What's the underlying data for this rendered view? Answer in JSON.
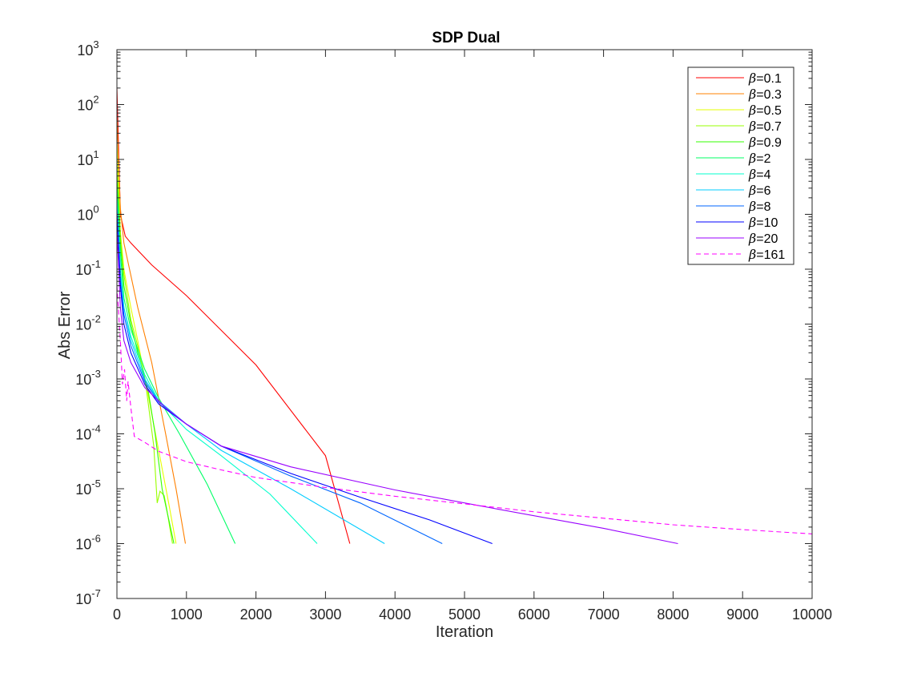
{
  "chart_data": {
    "type": "line",
    "title": "SDP Dual",
    "xlabel": "Iteration",
    "ylabel": "Abs Error",
    "xlim": [
      0,
      10000
    ],
    "ylim": [
      1e-07,
      1000
    ],
    "yscale": "log",
    "grid": false,
    "legend_position": "top-right",
    "x_ticks": [
      "0",
      "1000",
      "2000",
      "3000",
      "4000",
      "5000",
      "6000",
      "7000",
      "8000",
      "9000",
      "10000"
    ],
    "y_ticks": [
      {
        "base": "10",
        "exp": "-7"
      },
      {
        "base": "10",
        "exp": "-6"
      },
      {
        "base": "10",
        "exp": "-5"
      },
      {
        "base": "10",
        "exp": "-4"
      },
      {
        "base": "10",
        "exp": "-3"
      },
      {
        "base": "10",
        "exp": "-2"
      },
      {
        "base": "10",
        "exp": "-1"
      },
      {
        "base": "10",
        "exp": "0"
      },
      {
        "base": "10",
        "exp": "1"
      },
      {
        "base": "10",
        "exp": "2"
      },
      {
        "base": "10",
        "exp": "3"
      }
    ],
    "series": [
      {
        "name": "=0.1",
        "color": "#ff0000",
        "dash": false,
        "points": [
          [
            0,
            200
          ],
          [
            50,
            1
          ],
          [
            120,
            0.4
          ],
          [
            200,
            0.3
          ],
          [
            500,
            0.12
          ],
          [
            1000,
            0.033
          ],
          [
            2000,
            0.0018
          ],
          [
            3000,
            4e-05
          ],
          [
            3350,
            1e-06
          ]
        ]
      },
      {
        "name": "=0.3",
        "color": "#ff8000",
        "dash": false,
        "points": [
          [
            0,
            60
          ],
          [
            50,
            1.3
          ],
          [
            100,
            0.3
          ],
          [
            300,
            0.02
          ],
          [
            500,
            0.002
          ],
          [
            700,
            0.0001
          ],
          [
            850,
            1e-05
          ],
          [
            985,
            1e-06
          ]
        ]
      },
      {
        "name": "=0.5",
        "color": "#e6ff00",
        "dash": false,
        "points": [
          [
            0,
            20
          ],
          [
            50,
            0.5
          ],
          [
            100,
            0.1
          ],
          [
            200,
            0.02
          ],
          [
            300,
            0.005
          ],
          [
            450,
            0.0005
          ],
          [
            600,
            5e-05
          ],
          [
            750,
            5e-06
          ],
          [
            850,
            1e-06
          ]
        ]
      },
      {
        "name": "=0.7",
        "color": "#99ff00",
        "dash": false,
        "points": [
          [
            0,
            10
          ],
          [
            50,
            0.4
          ],
          [
            100,
            0.08
          ],
          [
            200,
            0.012
          ],
          [
            300,
            0.004
          ],
          [
            420,
            0.0007
          ],
          [
            530,
            6e-05
          ],
          [
            580,
            5.5e-06
          ],
          [
            620,
            9e-06
          ],
          [
            680,
            7.5e-06
          ],
          [
            720,
            4e-06
          ],
          [
            800,
            1e-06
          ]
        ]
      },
      {
        "name": "=0.9",
        "color": "#33ff00",
        "dash": false,
        "points": [
          [
            0,
            5
          ],
          [
            50,
            0.3
          ],
          [
            100,
            0.05
          ],
          [
            200,
            0.01
          ],
          [
            300,
            0.003
          ],
          [
            450,
            0.0006
          ],
          [
            550,
            0.0001
          ],
          [
            650,
            1e-05
          ],
          [
            820,
            1e-06
          ]
        ]
      },
      {
        "name": "=2",
        "color": "#00ff66",
        "dash": false,
        "points": [
          [
            0,
            3
          ],
          [
            50,
            0.2
          ],
          [
            100,
            0.03
          ],
          [
            200,
            0.008
          ],
          [
            400,
            0.0015
          ],
          [
            600,
            0.00045
          ],
          [
            900,
            0.0001
          ],
          [
            1300,
            1.2e-05
          ],
          [
            1700,
            1e-06
          ]
        ]
      },
      {
        "name": "=4",
        "color": "#00ffcc",
        "dash": false,
        "points": [
          [
            0,
            2
          ],
          [
            50,
            0.1
          ],
          [
            100,
            0.02
          ],
          [
            200,
            0.006
          ],
          [
            400,
            0.0012
          ],
          [
            600,
            0.0004
          ],
          [
            1000,
            0.00012
          ],
          [
            1500,
            4e-05
          ],
          [
            2200,
            8e-06
          ],
          [
            2880,
            1e-06
          ]
        ]
      },
      {
        "name": "=6",
        "color": "#00ccff",
        "dash": false,
        "points": [
          [
            0,
            1.5
          ],
          [
            50,
            0.08
          ],
          [
            100,
            0.02
          ],
          [
            200,
            0.005
          ],
          [
            400,
            0.001
          ],
          [
            600,
            0.0004
          ],
          [
            1000,
            0.00015
          ],
          [
            1500,
            5e-05
          ],
          [
            2500,
            1e-05
          ],
          [
            3850,
            1e-06
          ]
        ]
      },
      {
        "name": "=8",
        "color": "#0066ff",
        "dash": false,
        "points": [
          [
            0,
            1.2
          ],
          [
            50,
            0.06
          ],
          [
            100,
            0.015
          ],
          [
            200,
            0.004
          ],
          [
            400,
            0.0009
          ],
          [
            600,
            0.00038
          ],
          [
            1000,
            0.00015
          ],
          [
            1500,
            6e-05
          ],
          [
            2500,
            1.7e-05
          ],
          [
            3500,
            5.5e-06
          ],
          [
            4680,
            1e-06
          ]
        ]
      },
      {
        "name": "=10",
        "color": "#0000ff",
        "dash": false,
        "points": [
          [
            0,
            1
          ],
          [
            50,
            0.05
          ],
          [
            100,
            0.01
          ],
          [
            200,
            0.003
          ],
          [
            400,
            0.0008
          ],
          [
            600,
            0.00035
          ],
          [
            1000,
            0.00015
          ],
          [
            1500,
            6e-05
          ],
          [
            2500,
            1.9e-05
          ],
          [
            3500,
            7e-06
          ],
          [
            4500,
            2.7e-06
          ],
          [
            5400,
            1e-06
          ]
        ]
      },
      {
        "name": "=20",
        "color": "#9900ff",
        "dash": false,
        "points": [
          [
            0,
            0.5
          ],
          [
            50,
            0.02
          ],
          [
            100,
            0.005
          ],
          [
            200,
            0.002
          ],
          [
            400,
            0.0007
          ],
          [
            700,
            0.0003
          ],
          [
            1000,
            0.00015
          ],
          [
            1500,
            6e-05
          ],
          [
            2500,
            2.5e-05
          ],
          [
            4000,
            9.5e-06
          ],
          [
            5500,
            4.2e-06
          ],
          [
            7000,
            1.9e-06
          ],
          [
            8070,
            1e-06
          ]
        ]
      },
      {
        "name": "=161",
        "color": "#ff00ff",
        "dash": true,
        "points": [
          [
            0,
            0.05
          ],
          [
            50,
            0.005
          ],
          [
            80,
            0.0008
          ],
          [
            110,
            0.0015
          ],
          [
            140,
            0.0004
          ],
          [
            160,
            0.0009
          ],
          [
            200,
            0.0003
          ],
          [
            250,
            9e-05
          ],
          [
            400,
            7e-05
          ],
          [
            600,
            4.8e-05
          ],
          [
            1000,
            3.1e-05
          ],
          [
            1500,
            2.2e-05
          ],
          [
            2000,
            1.6e-05
          ],
          [
            3000,
            1.05e-05
          ],
          [
            4000,
            7.3e-06
          ],
          [
            5000,
            5.3e-06
          ],
          [
            6000,
            3.8e-06
          ],
          [
            7000,
            2.9e-06
          ],
          [
            8000,
            2.2e-06
          ],
          [
            9000,
            1.8e-06
          ],
          [
            10000,
            1.5e-06
          ]
        ]
      }
    ]
  }
}
